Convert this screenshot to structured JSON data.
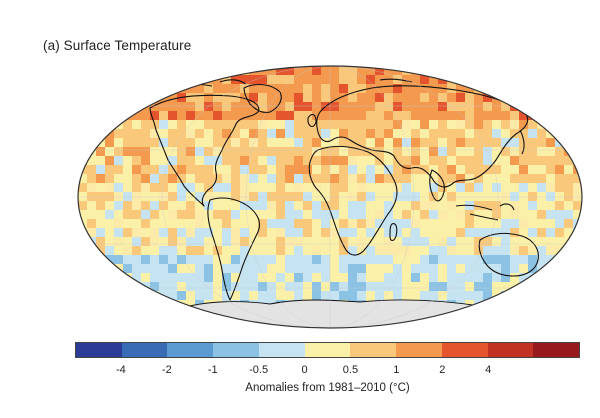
{
  "title": "(a) Surface Temperature",
  "colorbar": {
    "label": "Anomalies from 1981–2010 (°C)",
    "colors": [
      "#2b3b96",
      "#3a6cb5",
      "#5b9bd1",
      "#8cc3e5",
      "#c6e3f2",
      "#fbf0a8",
      "#f9c87a",
      "#f39a4f",
      "#e4552e",
      "#c23222",
      "#97191e"
    ],
    "ticks": [
      "-4",
      "-2",
      "-1",
      "-0.5",
      "0",
      "0.5",
      "1",
      "2",
      "4"
    ]
  },
  "map": {
    "ocean_color": "#fbeaa8",
    "land_outline": "#111111",
    "antarctica_color": "#e3e3e3"
  }
}
